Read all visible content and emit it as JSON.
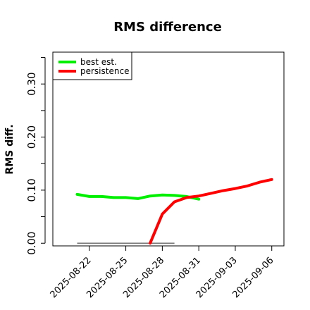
{
  "chart_data": {
    "type": "line",
    "title": "RMS difference",
    "ylabel": "RMS diff.",
    "xlabel": "",
    "ylim": [
      -0.005,
      0.36
    ],
    "xlim": [
      "2025-08-19",
      "2025-09-07"
    ],
    "y_ticks": [
      0.0,
      0.05,
      0.1,
      0.15,
      0.2,
      0.25,
      0.3,
      0.35
    ],
    "y_tick_labels": [
      "0.00",
      "0.10",
      "0.20",
      "0.30"
    ],
    "y_tick_label_values": [
      0.0,
      0.1,
      0.2,
      0.3
    ],
    "x_ticks": [
      "2025-08-22",
      "2025-08-25",
      "2025-08-28",
      "2025-08-31",
      "2025-09-03",
      "2025-09-06"
    ],
    "x_tick_labels": [
      "2025-08-22",
      "2025-08-25",
      "2025-08-28",
      "2025-08-31",
      "2025-09-03",
      "2025-09-06"
    ],
    "legend": {
      "position": "top-left"
    },
    "series": [
      {
        "name": "best est.",
        "color": "#00ee00",
        "points": [
          [
            "2025-08-21",
            0.092
          ],
          [
            "2025-08-22",
            0.088
          ],
          [
            "2025-08-23",
            0.088
          ],
          [
            "2025-08-24",
            0.086
          ],
          [
            "2025-08-25",
            0.086
          ],
          [
            "2025-08-26",
            0.084
          ],
          [
            "2025-08-27",
            0.089
          ],
          [
            "2025-08-28",
            0.091
          ],
          [
            "2025-08-29",
            0.09
          ],
          [
            "2025-08-30",
            0.088
          ],
          [
            "2025-08-31",
            0.083
          ]
        ]
      },
      {
        "name": "persistence",
        "color": "#ff0000",
        "points": [
          [
            "2025-08-27",
            0.0
          ],
          [
            "2025-08-28",
            0.055
          ],
          [
            "2025-08-29",
            0.078
          ],
          [
            "2025-08-30",
            0.086
          ],
          [
            "2025-08-31",
            0.089
          ],
          [
            "2025-09-01",
            0.094
          ],
          [
            "2025-09-02",
            0.099
          ],
          [
            "2025-09-03",
            0.103
          ],
          [
            "2025-09-04",
            0.108
          ],
          [
            "2025-09-05",
            0.115
          ],
          [
            "2025-09-06",
            0.12
          ]
        ]
      }
    ],
    "reference_line": {
      "color": "#666666",
      "points": [
        [
          "2025-08-21",
          0.0
        ],
        [
          "2025-08-29",
          0.0
        ]
      ]
    }
  }
}
